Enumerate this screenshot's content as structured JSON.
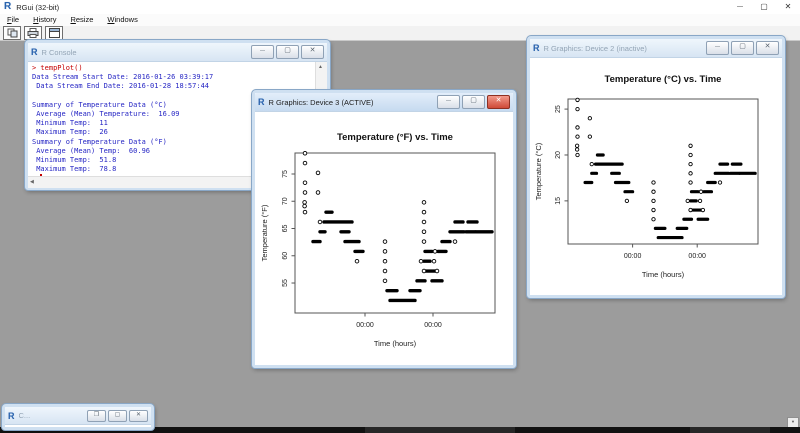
{
  "window": {
    "title": "RGui (32-bit)",
    "logo": "R"
  },
  "menubar": {
    "items": [
      "File",
      "History",
      "Resize",
      "Windows"
    ]
  },
  "toolbar": {
    "icons": [
      "copy-icon",
      "print-icon",
      "console-window-icon"
    ]
  },
  "glyphs": {
    "minimize": "—",
    "maximize": "▢",
    "restore": "❐",
    "close": "✕",
    "up_arrow": "▲",
    "left_arrow": "◀",
    "down_arrow": "▼"
  },
  "console": {
    "title": "R Console",
    "lines": [
      {
        "text": "> tempPlot()",
        "kind": "input"
      },
      {
        "text": "Data Stream Start Date: 2016-01-26 03:39:17",
        "kind": "output"
      },
      {
        "text": " Data Stream End Date: 2016-01-28 18:57:44",
        "kind": "output"
      },
      {
        "text": "",
        "kind": "output"
      },
      {
        "text": "Summary of Temperature Data (°C)",
        "kind": "output"
      },
      {
        "text": " Average (Mean) Temperature:  16.09",
        "kind": "output"
      },
      {
        "text": " Minimum Temp:  11",
        "kind": "output"
      },
      {
        "text": " Maximum Temp:  26",
        "kind": "output"
      },
      {
        "text": "Summary of Temperature Data (°F)",
        "kind": "output"
      },
      {
        "text": " Average (Mean) Temp:  60.96",
        "kind": "output"
      },
      {
        "text": " Minimum Temp:  51.8",
        "kind": "output"
      },
      {
        "text": " Maximum Temp:  78.8",
        "kind": "output"
      },
      {
        "text": "> ",
        "kind": "input",
        "caret": true
      }
    ]
  },
  "device3": {
    "title": "R Graphics: Device 3 (ACTIVE)"
  },
  "device2": {
    "title": "R Graphics: Device 2 (inactive)"
  },
  "minimized": {
    "title": "C..."
  },
  "chart_data": [
    {
      "type": "scatter",
      "title": "Temperature (°F) vs. Time",
      "xlabel": "Time (hours)",
      "ylabel": "Temperature (°F)",
      "yticks": [
        55,
        60,
        65,
        70,
        75
      ],
      "xticks": [
        {
          "pos": 0.35,
          "label": "00:00"
        },
        {
          "pos": 0.69,
          "label": "00:00"
        }
      ],
      "ylim": [
        49.5,
        78.85
      ],
      "grid": false,
      "legend": "none",
      "points": [
        [
          0.05,
          78.8
        ],
        [
          0.05,
          77.0
        ],
        [
          0.05,
          73.4
        ],
        [
          0.05,
          71.6
        ],
        [
          0.048,
          69.8
        ],
        [
          0.048,
          69.1
        ],
        [
          0.05,
          68.0
        ],
        [
          0.115,
          75.2
        ],
        [
          0.115,
          71.6
        ],
        [
          0.125,
          66.2
        ],
        [
          0.31,
          59.0
        ],
        [
          0.45,
          62.6
        ],
        [
          0.45,
          60.8
        ],
        [
          0.45,
          59.0
        ],
        [
          0.45,
          57.2
        ],
        [
          0.45,
          55.4
        ],
        [
          0.645,
          69.8
        ],
        [
          0.645,
          68.0
        ],
        [
          0.645,
          66.2
        ],
        [
          0.645,
          64.4
        ],
        [
          0.645,
          62.6
        ],
        [
          0.63,
          59.0
        ],
        [
          0.695,
          59.0
        ],
        [
          0.645,
          57.2
        ],
        [
          0.71,
          57.2
        ],
        [
          0.7,
          60.8
        ],
        [
          0.8,
          62.6
        ]
      ],
      "run_segments": [
        [
          0.09,
          0.125,
          62.6
        ],
        [
          0.125,
          0.15,
          64.4
        ],
        [
          0.145,
          0.285,
          66.2
        ],
        [
          0.155,
          0.185,
          68.0
        ],
        [
          0.23,
          0.27,
          64.4
        ],
        [
          0.25,
          0.32,
          62.6
        ],
        [
          0.3,
          0.34,
          60.8
        ],
        [
          0.46,
          0.51,
          53.6
        ],
        [
          0.475,
          0.6,
          51.8
        ],
        [
          0.575,
          0.625,
          53.6
        ],
        [
          0.61,
          0.65,
          55.4
        ],
        [
          0.685,
          0.735,
          55.4
        ],
        [
          0.645,
          0.675,
          59.0
        ],
        [
          0.655,
          0.7,
          57.2
        ],
        [
          0.65,
          0.685,
          60.8
        ],
        [
          0.715,
          0.755,
          60.8
        ],
        [
          0.735,
          0.775,
          62.6
        ],
        [
          0.775,
          0.845,
          64.4
        ],
        [
          0.855,
          0.9,
          64.4
        ],
        [
          0.905,
          0.985,
          64.4
        ],
        [
          0.8,
          0.84,
          66.2
        ],
        [
          0.865,
          0.91,
          66.2
        ]
      ]
    },
    {
      "type": "scatter",
      "title": "Temperature (°C) vs. Time",
      "xlabel": "Time (hours)",
      "ylabel": "Temperature (°C)",
      "yticks": [
        15,
        20,
        25
      ],
      "xticks": [
        {
          "pos": 0.34,
          "label": "00:00"
        },
        {
          "pos": 0.68,
          "label": "00:00"
        }
      ],
      "ylim": [
        10.3,
        26.1
      ],
      "grid": false,
      "legend": "none",
      "points": [
        [
          0.05,
          26
        ],
        [
          0.05,
          25
        ],
        [
          0.05,
          23
        ],
        [
          0.05,
          22
        ],
        [
          0.048,
          21
        ],
        [
          0.048,
          20.6
        ],
        [
          0.05,
          20
        ],
        [
          0.115,
          24
        ],
        [
          0.115,
          22
        ],
        [
          0.125,
          19
        ],
        [
          0.31,
          15
        ],
        [
          0.45,
          17
        ],
        [
          0.45,
          16
        ],
        [
          0.45,
          15
        ],
        [
          0.45,
          14
        ],
        [
          0.45,
          13
        ],
        [
          0.645,
          21
        ],
        [
          0.645,
          20
        ],
        [
          0.645,
          19
        ],
        [
          0.645,
          18
        ],
        [
          0.645,
          17
        ],
        [
          0.63,
          15
        ],
        [
          0.695,
          15
        ],
        [
          0.645,
          14
        ],
        [
          0.71,
          14
        ],
        [
          0.7,
          16
        ],
        [
          0.8,
          17
        ]
      ],
      "run_segments": [
        [
          0.09,
          0.125,
          17
        ],
        [
          0.125,
          0.15,
          18
        ],
        [
          0.145,
          0.285,
          19
        ],
        [
          0.155,
          0.185,
          20
        ],
        [
          0.23,
          0.27,
          18
        ],
        [
          0.25,
          0.32,
          17
        ],
        [
          0.3,
          0.34,
          16
        ],
        [
          0.46,
          0.51,
          12
        ],
        [
          0.475,
          0.6,
          11
        ],
        [
          0.575,
          0.625,
          12
        ],
        [
          0.61,
          0.65,
          13
        ],
        [
          0.685,
          0.735,
          13
        ],
        [
          0.645,
          0.675,
          15
        ],
        [
          0.655,
          0.7,
          14
        ],
        [
          0.65,
          0.685,
          16
        ],
        [
          0.715,
          0.755,
          16
        ],
        [
          0.735,
          0.775,
          17
        ],
        [
          0.775,
          0.845,
          18
        ],
        [
          0.855,
          0.9,
          18
        ],
        [
          0.905,
          0.985,
          18
        ],
        [
          0.8,
          0.84,
          19
        ],
        [
          0.865,
          0.91,
          19
        ]
      ]
    }
  ]
}
